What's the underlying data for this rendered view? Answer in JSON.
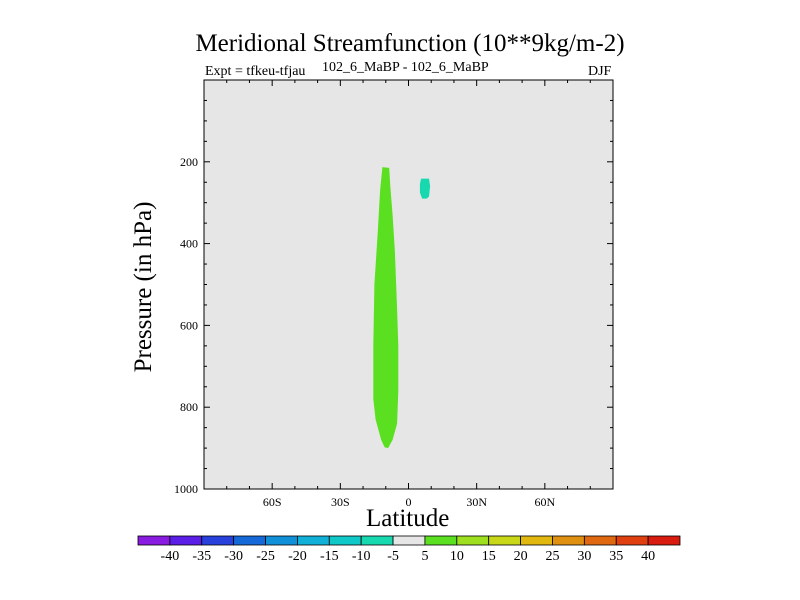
{
  "chart_data": {
    "type": "heatmap",
    "title": "Meridional Streamfunction (10**9kg/m-2)",
    "subtitle_left": "Expt = tfkeu-tfjau",
    "subtitle_center": "102_6_MaBP - 102_6_MaBP",
    "subtitle_right": "DJF",
    "xlabel": "Latitude",
    "ylabel": "Pressure (in hPa)",
    "xlim": [
      -90,
      90
    ],
    "ylim": [
      1000,
      0
    ],
    "y_inverted": true,
    "x_ticks": [
      {
        "value": -60,
        "label": "60S"
      },
      {
        "value": -30,
        "label": "30S"
      },
      {
        "value": 0,
        "label": "0"
      },
      {
        "value": 30,
        "label": "30N"
      },
      {
        "value": 60,
        "label": "60N"
      }
    ],
    "y_ticks": [
      {
        "value": 200,
        "label": "200"
      },
      {
        "value": 400,
        "label": "400"
      },
      {
        "value": 600,
        "label": "600"
      },
      {
        "value": 800,
        "label": "800"
      },
      {
        "value": 1000,
        "label": "1000"
      }
    ],
    "background_color": "#e6e6e6",
    "colorbar": {
      "labels": [
        "-40",
        "-35",
        "-30",
        "-25",
        "-20",
        "-15",
        "-10",
        "-5",
        "5",
        "10",
        "15",
        "20",
        "25",
        "30",
        "35",
        "40"
      ],
      "colors": [
        "#8a1be0",
        "#5a1ee6",
        "#2840dc",
        "#1468d8",
        "#1090d8",
        "#10b0d8",
        "#10c8c8",
        "#18d8b0",
        "#e6e6e6",
        "#5ae020",
        "#9ee020",
        "#c8d818",
        "#e0b810",
        "#e09010",
        "#e06810",
        "#e04010",
        "#d81c10"
      ]
    },
    "regions": [
      {
        "name": "positive-cell",
        "level": "5 to 10",
        "color": "#5ae020",
        "polygon": [
          [
            -11.5,
            213
          ],
          [
            -8.5,
            215
          ],
          [
            -8,
            260
          ],
          [
            -7,
            330
          ],
          [
            -6,
            420
          ],
          [
            -5,
            560
          ],
          [
            -4.5,
            650
          ],
          [
            -4.5,
            760
          ],
          [
            -5,
            840
          ],
          [
            -7,
            880
          ],
          [
            -9,
            900
          ],
          [
            -10.5,
            898
          ],
          [
            -12,
            880
          ],
          [
            -14.5,
            830
          ],
          [
            -15.5,
            780
          ],
          [
            -15.5,
            650
          ],
          [
            -15,
            500
          ],
          [
            -13.5,
            370
          ],
          [
            -12.5,
            270
          ],
          [
            -11.5,
            213
          ]
        ]
      },
      {
        "name": "negative-cell",
        "level": "-10 to -5",
        "color": "#18d8b0",
        "polygon": [
          [
            5.5,
            241
          ],
          [
            9,
            241
          ],
          [
            9.5,
            260
          ],
          [
            9,
            285
          ],
          [
            8,
            290
          ],
          [
            6,
            290
          ],
          [
            5,
            275
          ],
          [
            5,
            255
          ],
          [
            5.5,
            241
          ]
        ]
      }
    ]
  }
}
